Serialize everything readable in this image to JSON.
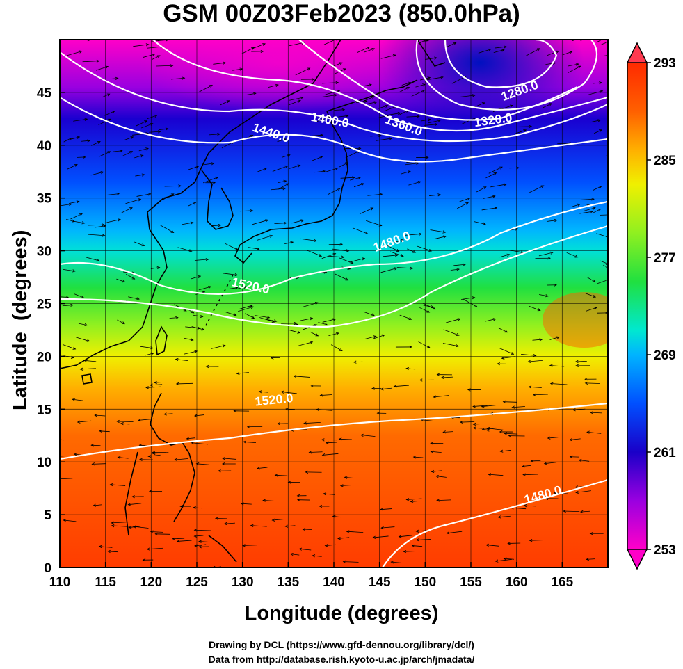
{
  "title": "GSM 00Z03Feb2023 (850.0hPa)",
  "x_axis": {
    "label": "Longitude (degrees)",
    "range": [
      110,
      170
    ],
    "ticks": [
      110,
      115,
      120,
      125,
      130,
      135,
      140,
      145,
      150,
      155,
      160,
      165
    ]
  },
  "y_axis": {
    "label": "Latitude  (degrees)",
    "range": [
      0,
      50
    ],
    "ticks": [
      0,
      5,
      10,
      15,
      20,
      25,
      30,
      35,
      40,
      45
    ]
  },
  "colorbar": {
    "ticks": [
      293,
      285,
      277,
      269,
      261,
      253
    ],
    "range": [
      253,
      293
    ],
    "colors": [
      "#ff00c8",
      "#9a00e0",
      "#1a00c8",
      "#0050ff",
      "#00b4ff",
      "#00e8d0",
      "#20e040",
      "#90f020",
      "#f0f000",
      "#ffb000",
      "#ff6000",
      "#ff2a00"
    ]
  },
  "contour_labels": [
    {
      "text": "1280.0",
      "lon": 160.5,
      "lat": 44.8,
      "angle": -20
    },
    {
      "text": "1320.0",
      "lon": 157.5,
      "lat": 42.0,
      "angle": -8
    },
    {
      "text": "1360.0",
      "lon": 147.5,
      "lat": 41.5,
      "angle": 20
    },
    {
      "text": "1400.0",
      "lon": 139.5,
      "lat": 42.0,
      "angle": 10
    },
    {
      "text": "1440.0",
      "lon": 133.0,
      "lat": 40.8,
      "angle": 18
    },
    {
      "text": "1480.0",
      "lon": 146.5,
      "lat": 30.5,
      "angle": -20
    },
    {
      "text": "1520.0",
      "lon": 130.8,
      "lat": 26.3,
      "angle": 12
    },
    {
      "text": "1520.0",
      "lon": 133.5,
      "lat": 15.5,
      "angle": -6
    },
    {
      "text": "1480.0",
      "lon": 163.0,
      "lat": 6.5,
      "angle": -16
    }
  ],
  "credits": [
    "Drawing by DCL (https://www.gfd-dennou.org/library/dcl/)",
    "Data from http://database.rish.kyoto-u.ac.jp/arch/jmadata/"
  ]
}
